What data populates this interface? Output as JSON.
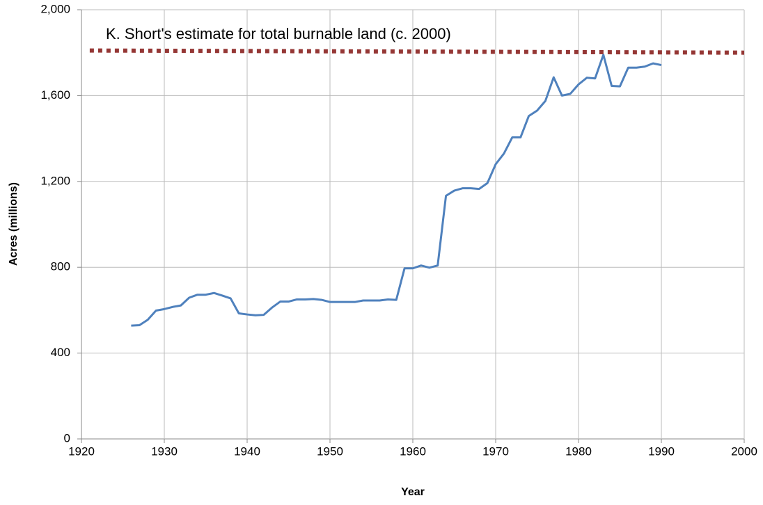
{
  "chart_data": {
    "type": "line",
    "x_label": "Year",
    "y_label": "Acres (millions)",
    "xlim": [
      1920,
      2000
    ],
    "xticks": [
      1920,
      1930,
      1940,
      1950,
      1960,
      1970,
      1980,
      1990,
      2000
    ],
    "ylim": [
      0,
      2000
    ],
    "yticks": [
      0,
      400,
      800,
      {
        "value": 1200,
        "label": "1,200"
      },
      {
        "value": 1600,
        "label": "1,600"
      },
      {
        "value": 2000,
        "label": "2,000"
      }
    ],
    "grid": true,
    "series": [
      {
        "color": "#4f81bd",
        "style": "solid",
        "x": [
          1926,
          1927,
          1928,
          1929,
          1930,
          1931,
          1932,
          1933,
          1934,
          1935,
          1936,
          1937,
          1938,
          1939,
          1940,
          1941,
          1942,
          1943,
          1944,
          1945,
          1946,
          1947,
          1948,
          1949,
          1950,
          1951,
          1952,
          1953,
          1954,
          1955,
          1956,
          1957,
          1958,
          1959,
          1960,
          1961,
          1962,
          1963,
          1964,
          1965,
          1966,
          1967,
          1968,
          1969,
          1970,
          1971,
          1972,
          1973,
          1974,
          1975,
          1976,
          1977,
          1978,
          1979,
          1980,
          1981,
          1982,
          1983,
          1984,
          1985,
          1986,
          1987,
          1988,
          1989,
          1990
        ],
        "values": [
          528,
          530,
          555,
          598,
          605,
          615,
          622,
          658,
          672,
          672,
          680,
          668,
          655,
          585,
          580,
          576,
          578,
          612,
          640,
          640,
          650,
          650,
          652,
          648,
          638,
          638,
          638,
          638,
          645,
          645,
          645,
          650,
          648,
          795,
          795,
          808,
          798,
          808,
          1133,
          1157,
          1168,
          1168,
          1165,
          1192,
          1280,
          1330,
          1405,
          1405,
          1505,
          1530,
          1575,
          1685,
          1600,
          1608,
          1652,
          1683,
          1680,
          1790,
          1645,
          1643,
          1730,
          1730,
          1735,
          1750,
          1742
        ]
      },
      {
        "name": "K. Short's estimate for total burnable land (c. 2000)",
        "color": "#953735",
        "style": "dotted",
        "x": [
          1921,
          2000
        ],
        "values": [
          1810,
          1800
        ]
      }
    ]
  }
}
